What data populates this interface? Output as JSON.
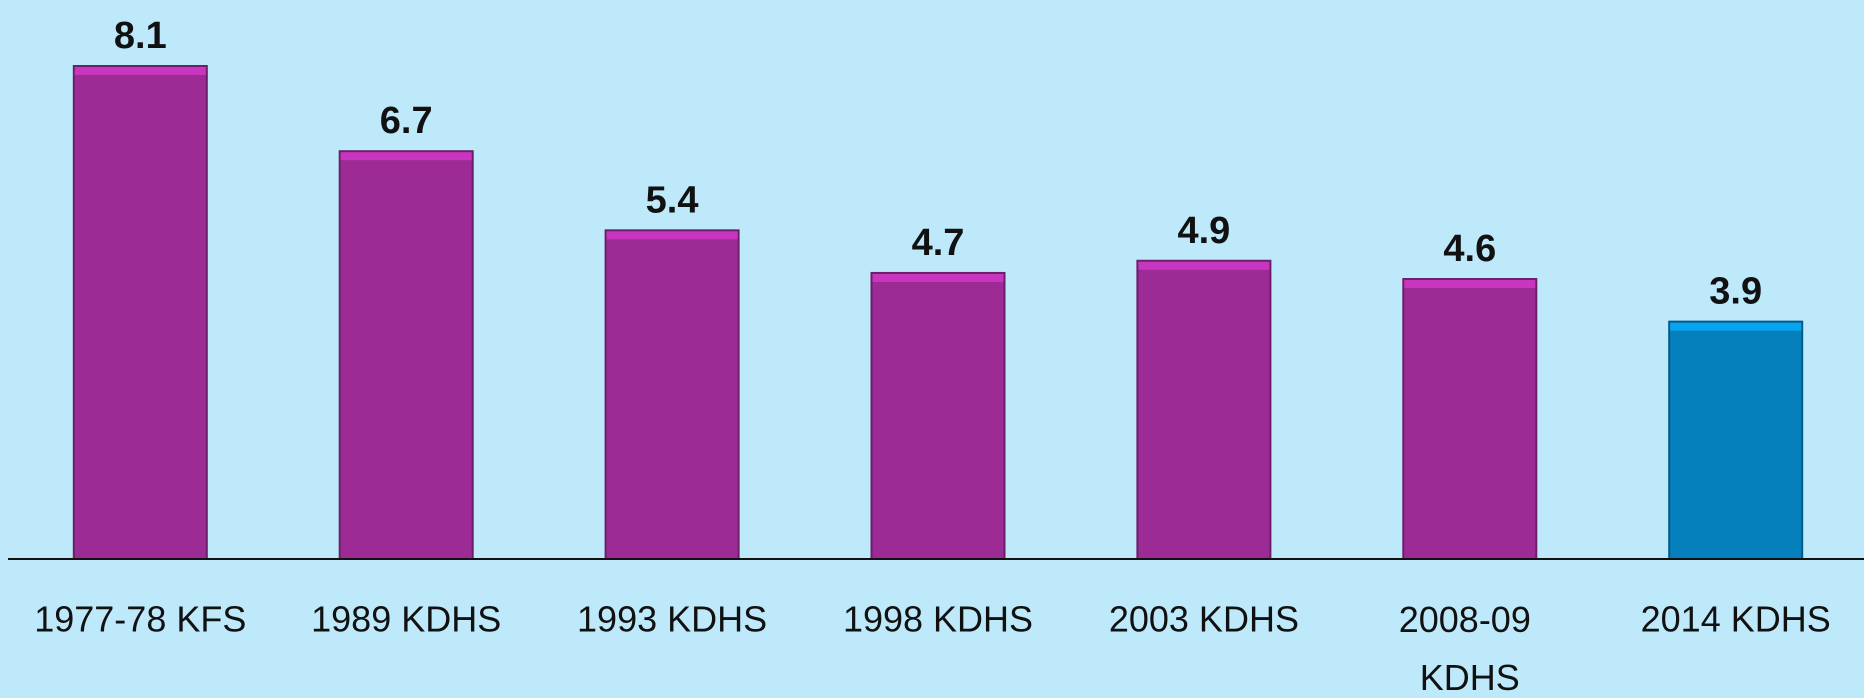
{
  "chart_data": {
    "type": "bar",
    "categories": [
      "1977-78 KFS",
      "1989 KDHS",
      "1993 KDHS",
      "1998 KDHS",
      "2003 KDHS",
      "2008-09 KDHS",
      "2014 KDHS"
    ],
    "values": [
      8.1,
      6.7,
      5.4,
      4.7,
      4.9,
      4.6,
      3.9
    ],
    "colors": [
      "#9c2b96",
      "#9c2b96",
      "#9c2b96",
      "#9c2b96",
      "#9c2b96",
      "#9c2b96",
      "#0580bd"
    ]
  }
}
